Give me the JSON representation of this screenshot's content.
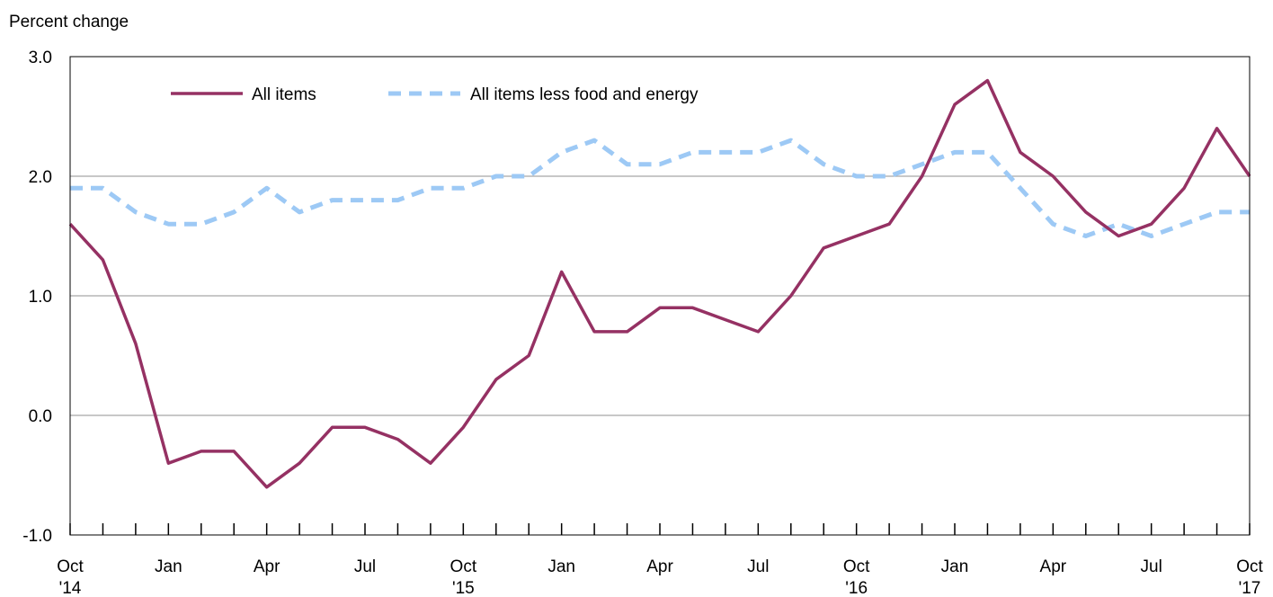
{
  "chart_data": {
    "type": "line",
    "title": "",
    "xlabel": "",
    "ylabel": "Percent change",
    "ylim": [
      -1.0,
      3.0
    ],
    "yticks": [
      -1.0,
      0.0,
      1.0,
      2.0,
      3.0
    ],
    "ytick_labels": [
      "-1.0",
      "0.0",
      "1.0",
      "2.0",
      "3.0"
    ],
    "grid": true,
    "legend_position": "top-left",
    "x": [
      "Oct 2014",
      "Nov 2014",
      "Dec 2014",
      "Jan 2015",
      "Feb 2015",
      "Mar 2015",
      "Apr 2015",
      "May 2015",
      "Jun 2015",
      "Jul 2015",
      "Aug 2015",
      "Sep 2015",
      "Oct 2015",
      "Nov 2015",
      "Dec 2015",
      "Jan 2016",
      "Feb 2016",
      "Mar 2016",
      "Apr 2016",
      "May 2016",
      "Jun 2016",
      "Jul 2016",
      "Aug 2016",
      "Sep 2016",
      "Oct 2016",
      "Nov 2016",
      "Dec 2016",
      "Jan 2017",
      "Feb 2017",
      "Mar 2017",
      "Apr 2017",
      "May 2017",
      "Jun 2017",
      "Jul 2017",
      "Aug 2017",
      "Sep 2017",
      "Oct 2017"
    ],
    "xtick_labels": [
      {
        "index": 0,
        "line1": "Oct",
        "line2": "'14"
      },
      {
        "index": 3,
        "line1": "Jan",
        "line2": ""
      },
      {
        "index": 6,
        "line1": "Apr",
        "line2": ""
      },
      {
        "index": 9,
        "line1": "Jul",
        "line2": ""
      },
      {
        "index": 12,
        "line1": "Oct",
        "line2": "'15"
      },
      {
        "index": 15,
        "line1": "Jan",
        "line2": ""
      },
      {
        "index": 18,
        "line1": "Apr",
        "line2": ""
      },
      {
        "index": 21,
        "line1": "Jul",
        "line2": ""
      },
      {
        "index": 24,
        "line1": "Oct",
        "line2": "'16"
      },
      {
        "index": 27,
        "line1": "Jan",
        "line2": ""
      },
      {
        "index": 30,
        "line1": "Apr",
        "line2": ""
      },
      {
        "index": 33,
        "line1": "Jul",
        "line2": ""
      },
      {
        "index": 36,
        "line1": "Oct",
        "line2": "'17"
      }
    ],
    "series": [
      {
        "name": "All items",
        "color": "#953163",
        "style": "solid",
        "values": [
          1.6,
          1.3,
          0.6,
          -0.4,
          -0.3,
          -0.3,
          -0.6,
          -0.4,
          -0.1,
          -0.1,
          -0.2,
          -0.4,
          -0.1,
          0.3,
          0.5,
          1.2,
          0.7,
          0.7,
          0.9,
          0.9,
          0.8,
          0.7,
          1.0,
          1.4,
          1.5,
          1.6,
          2.0,
          2.6,
          2.8,
          2.2,
          2.0,
          1.7,
          1.5,
          1.6,
          1.9,
          2.4,
          2.0
        ]
      },
      {
        "name": "All items less food and energy",
        "color": "#9dc9f5",
        "style": "dashed",
        "values": [
          1.9,
          1.9,
          1.7,
          1.6,
          1.6,
          1.7,
          1.9,
          1.7,
          1.8,
          1.8,
          1.8,
          1.9,
          1.9,
          2.0,
          2.0,
          2.2,
          2.3,
          2.1,
          2.1,
          2.2,
          2.2,
          2.2,
          2.3,
          2.1,
          2.0,
          2.0,
          2.1,
          2.2,
          2.2,
          1.9,
          1.6,
          1.5,
          1.6,
          1.5,
          1.6,
          1.7,
          1.7
        ]
      }
    ]
  }
}
